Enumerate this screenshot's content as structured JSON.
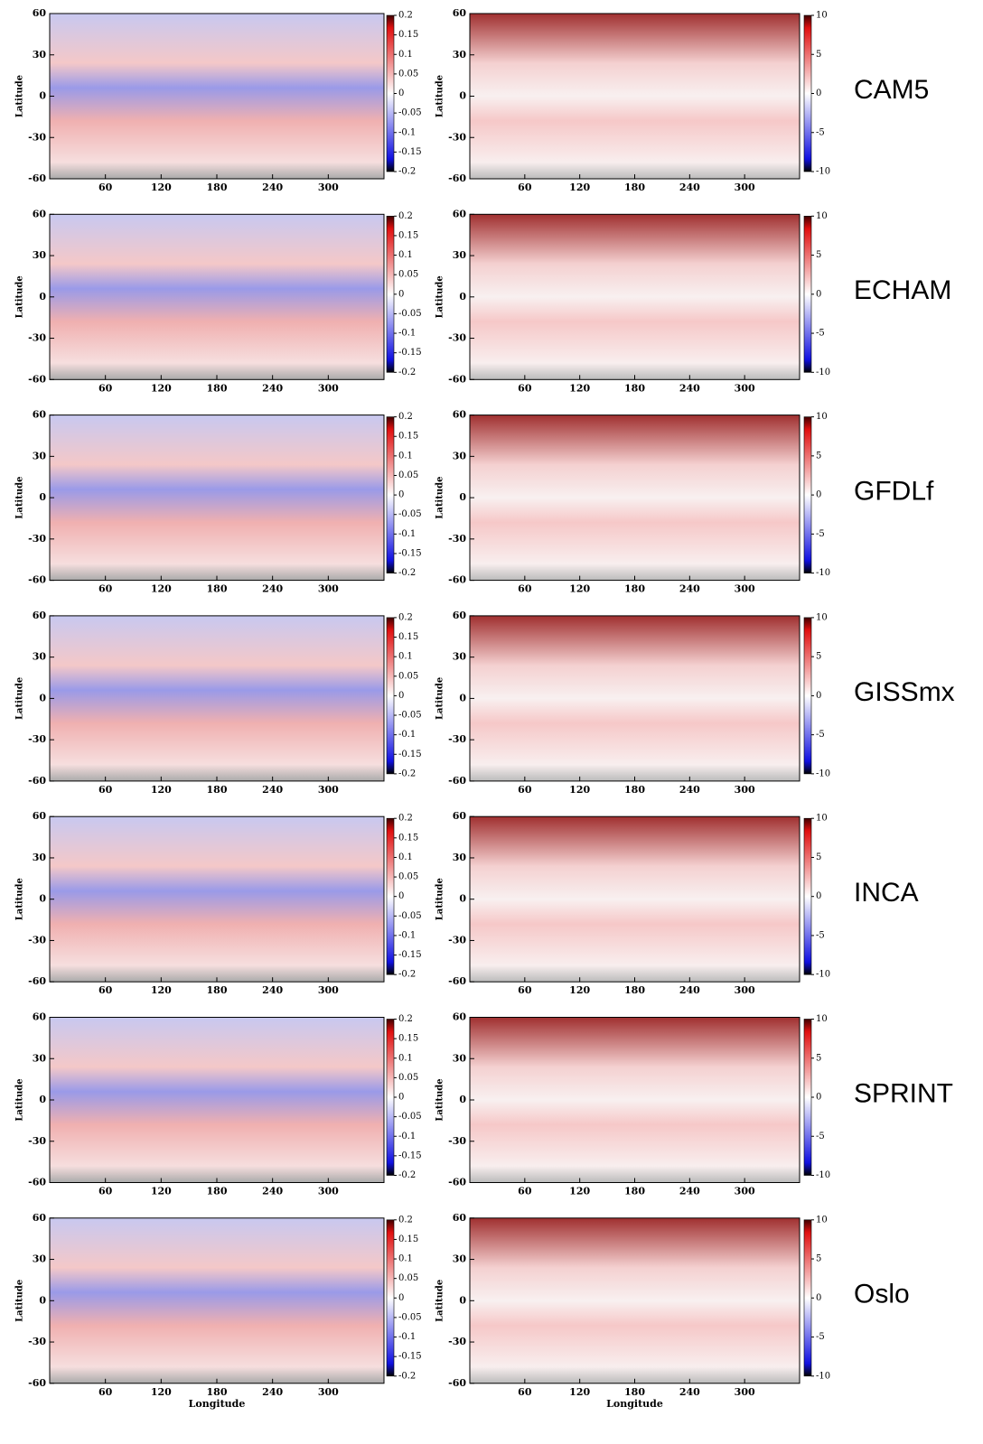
{
  "panels": {
    "xlim": [
      0,
      360
    ],
    "ylim": [
      -60,
      60
    ],
    "xticks": [
      60,
      120,
      180,
      240,
      300
    ],
    "yticks": [
      -60,
      -30,
      0,
      30,
      60
    ],
    "x_label": "Longitude",
    "y_label": "Latitude",
    "left_colorbar": {
      "lim": [
        -0.2,
        0.2
      ],
      "ticks": [
        0.2,
        0.15,
        0.1,
        0.05,
        0,
        -0.05,
        -0.1,
        -0.15,
        -0.2
      ]
    },
    "right_colorbar": {
      "lim": [
        -10,
        10
      ],
      "ticks": [
        10,
        5,
        0,
        -5,
        -10
      ]
    }
  },
  "rows": [
    {
      "model": "CAM5"
    },
    {
      "model": "ECHAM"
    },
    {
      "model": "GFDLf"
    },
    {
      "model": "GISSmx"
    },
    {
      "model": "INCA"
    },
    {
      "model": "SPRINT"
    },
    {
      "model": "Oslo"
    }
  ]
}
